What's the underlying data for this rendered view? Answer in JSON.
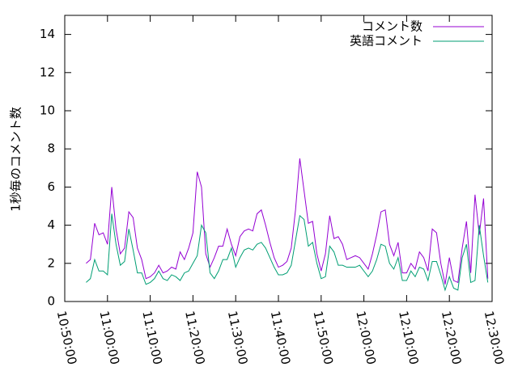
{
  "chart_data": {
    "type": "line",
    "ylabel": "1秒毎のコメント数",
    "x": [
      "10:55:00",
      "10:56:00",
      "10:57:00",
      "10:58:00",
      "10:59:00",
      "11:00:00",
      "11:01:00",
      "11:02:00",
      "11:03:00",
      "11:04:00",
      "11:05:00",
      "11:06:00",
      "11:07:00",
      "11:08:00",
      "11:09:00",
      "11:10:00",
      "11:11:00",
      "11:12:00",
      "11:13:00",
      "11:14:00",
      "11:15:00",
      "11:16:00",
      "11:17:00",
      "11:18:00",
      "11:19:00",
      "11:20:00",
      "11:21:00",
      "11:22:00",
      "11:23:00",
      "11:24:00",
      "11:25:00",
      "11:26:00",
      "11:27:00",
      "11:28:00",
      "11:29:00",
      "11:30:00",
      "11:31:00",
      "11:32:00",
      "11:33:00",
      "11:34:00",
      "11:35:00",
      "11:36:00",
      "11:37:00",
      "11:38:00",
      "11:39:00",
      "11:40:00",
      "11:41:00",
      "11:42:00",
      "11:43:00",
      "11:44:00",
      "11:45:00",
      "11:46:00",
      "11:47:00",
      "11:48:00",
      "11:49:00",
      "11:50:00",
      "11:51:00",
      "11:52:00",
      "11:53:00",
      "11:54:00",
      "11:55:00",
      "11:56:00",
      "11:57:00",
      "11:58:00",
      "11:59:00",
      "12:00:00",
      "12:01:00",
      "12:02:00",
      "12:03:00",
      "12:04:00",
      "12:05:00",
      "12:06:00",
      "12:07:00",
      "12:08:00",
      "12:09:00",
      "12:10:00",
      "12:11:00",
      "12:12:00",
      "12:13:00",
      "12:14:00",
      "12:15:00",
      "12:16:00",
      "12:17:00",
      "12:18:00",
      "12:19:00",
      "12:20:00",
      "12:21:00",
      "12:22:00",
      "12:23:00",
      "12:24:00",
      "12:25:00",
      "12:26:00",
      "12:27:00",
      "12:28:00",
      "12:29:00"
    ],
    "series": [
      {
        "name": "コメント数",
        "color": "#9400d3",
        "values": [
          2.0,
          2.2,
          4.1,
          3.5,
          3.6,
          3.0,
          6.0,
          3.8,
          2.5,
          2.8,
          4.7,
          4.4,
          2.8,
          2.2,
          1.2,
          1.3,
          1.5,
          1.9,
          1.5,
          1.6,
          1.8,
          1.7,
          2.6,
          2.2,
          2.8,
          3.6,
          6.8,
          6.0,
          2.5,
          1.8,
          2.3,
          2.9,
          2.9,
          3.8,
          3.0,
          2.4,
          3.4,
          3.7,
          3.8,
          3.7,
          4.6,
          4.8,
          4.0,
          3.1,
          2.3,
          1.8,
          1.9,
          2.1,
          2.8,
          4.8,
          7.5,
          5.8,
          4.1,
          4.2,
          2.5,
          1.6,
          2.5,
          4.5,
          3.3,
          3.4,
          3.0,
          2.2,
          2.3,
          2.4,
          2.3,
          2.0,
          1.7,
          2.5,
          3.5,
          4.7,
          4.8,
          3.0,
          2.4,
          3.1,
          1.5,
          1.5,
          2.0,
          1.7,
          2.6,
          2.3,
          1.6,
          3.8,
          3.6,
          2.0,
          0.9,
          2.3,
          1.1,
          1.0,
          2.8,
          4.2,
          1.5,
          5.6,
          3.5,
          5.4,
          1.2
        ]
      },
      {
        "name": "英語コメント",
        "color": "#009e73",
        "values": [
          1.0,
          1.2,
          2.2,
          1.6,
          1.6,
          1.4,
          4.6,
          3.0,
          1.9,
          2.1,
          3.8,
          2.7,
          1.5,
          1.5,
          0.9,
          1.0,
          1.2,
          1.6,
          1.2,
          1.1,
          1.4,
          1.3,
          1.1,
          1.5,
          1.6,
          2.0,
          2.4,
          4.0,
          3.6,
          1.5,
          1.2,
          1.6,
          2.2,
          2.2,
          2.8,
          1.8,
          2.3,
          2.7,
          2.8,
          2.7,
          3.0,
          3.1,
          2.8,
          2.3,
          1.8,
          1.4,
          1.4,
          1.5,
          1.9,
          3.2,
          4.5,
          4.3,
          2.9,
          3.1,
          2.0,
          1.2,
          1.3,
          2.9,
          2.6,
          1.9,
          1.9,
          1.8,
          1.8,
          1.8,
          1.9,
          1.6,
          1.3,
          1.6,
          2.2,
          3.0,
          2.9,
          2.0,
          1.7,
          2.3,
          1.1,
          1.1,
          1.6,
          1.3,
          1.8,
          1.7,
          1.1,
          2.1,
          2.1,
          1.4,
          0.6,
          1.3,
          0.7,
          0.6,
          2.3,
          3.0,
          1.0,
          1.1,
          4.0,
          2.4,
          1.0
        ]
      }
    ],
    "xlim": [
      "10:50:00",
      "12:30:00"
    ],
    "xticks": [
      "10:50:00",
      "11:00:00",
      "11:10:00",
      "11:20:00",
      "11:30:00",
      "11:40:00",
      "11:50:00",
      "12:00:00",
      "12:10:00",
      "12:20:00",
      "12:30:00"
    ],
    "ylim": [
      0,
      15
    ],
    "yticks": [
      0,
      2,
      4,
      6,
      8,
      10,
      12,
      14
    ],
    "legend": "top-right"
  }
}
